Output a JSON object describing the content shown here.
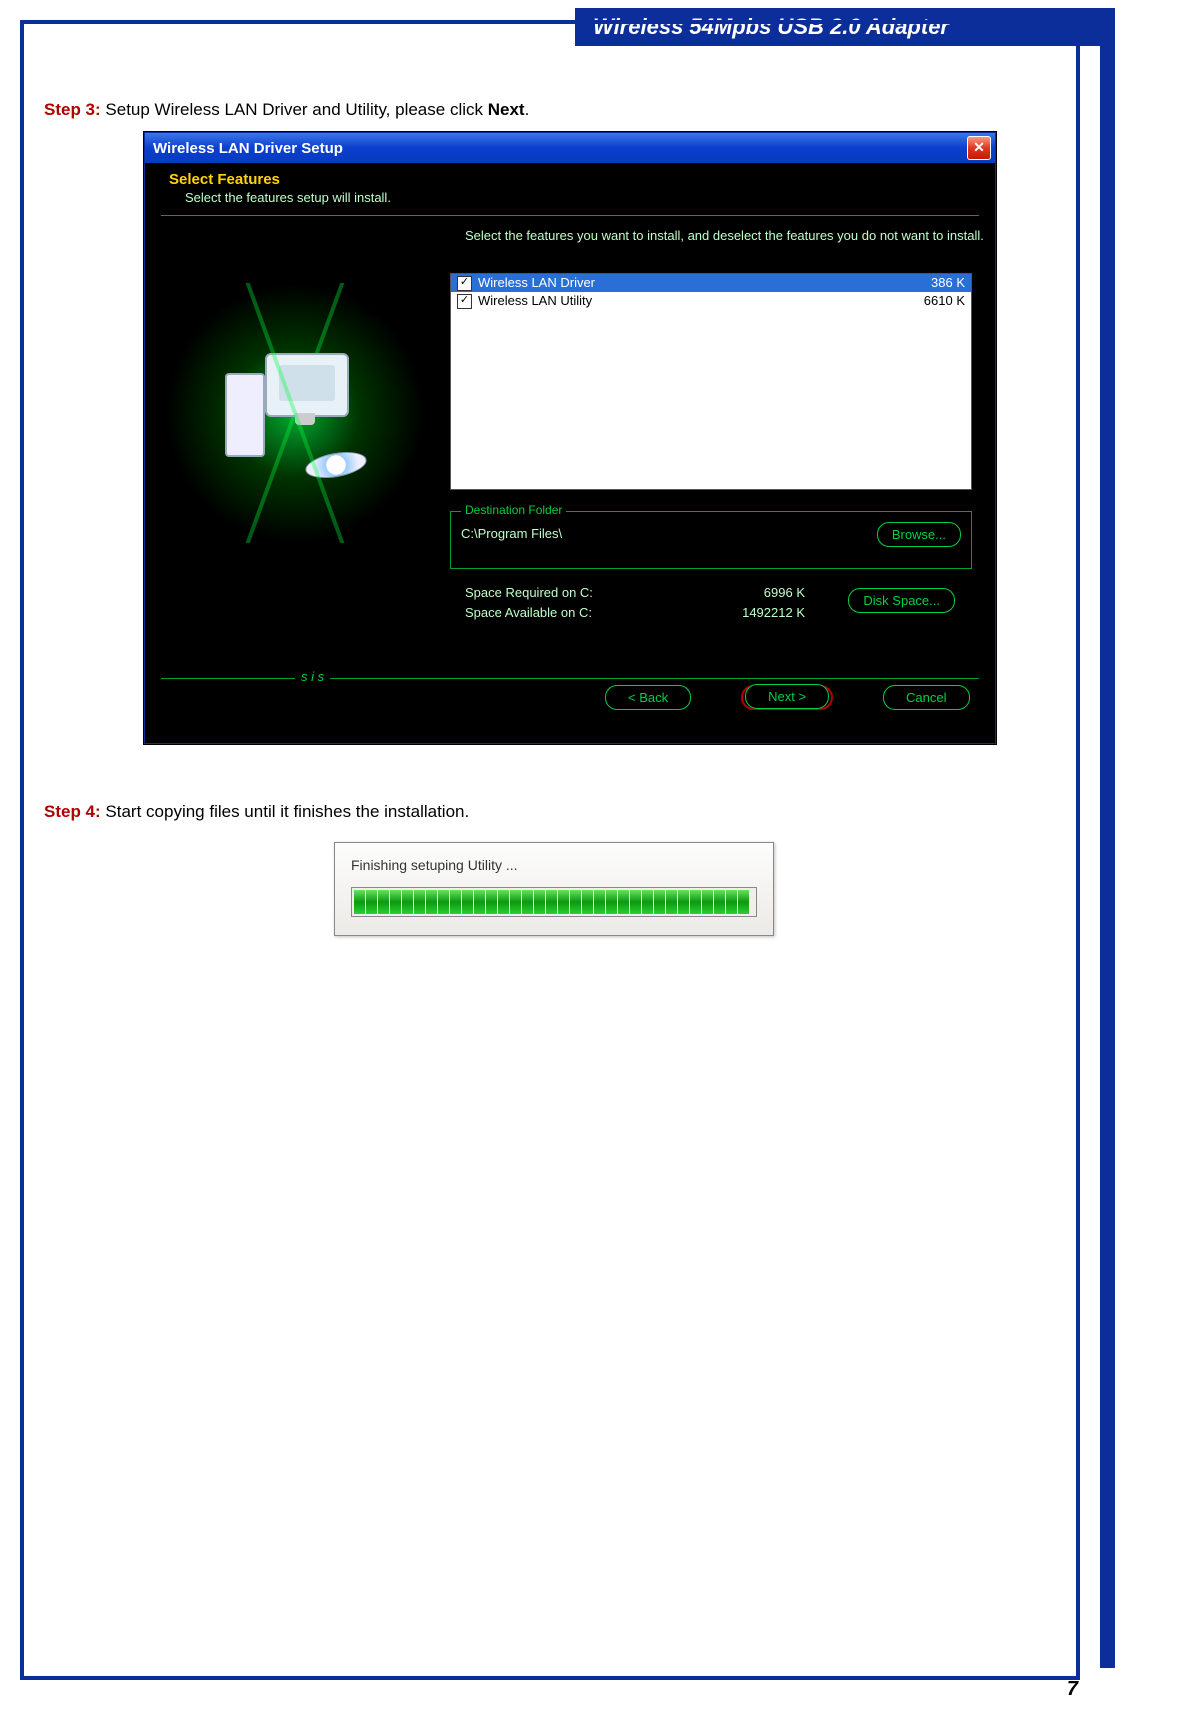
{
  "header": {
    "title": "Wireless 54Mpbs USB 2.0 Adapter"
  },
  "step3": {
    "label": "Step 3:",
    "text1": " Setup Wireless LAN Driver and Utility, please click ",
    "bold": "Next",
    "text2": "."
  },
  "step4": {
    "label": "Step 4:",
    "text": " Start copying files until it finishes the installation."
  },
  "win1": {
    "title": "Wireless LAN Driver Setup",
    "close": "✕",
    "section_title": "Select Features",
    "section_sub": "Select the features setup will install.",
    "prompt": "Select the features you want to install, and deselect the features you do not want to install.",
    "features": [
      {
        "label": "Wireless LAN Driver",
        "size": "386 K",
        "selected": true
      },
      {
        "label": "Wireless LAN Utility",
        "size": "6610 K",
        "selected": false
      }
    ],
    "dest_legend": "Destination Folder",
    "dest_path": "C:\\Program Files\\",
    "browse": "Browse...",
    "space_req_label": "Space Required on C:",
    "space_req_val": "6996 K",
    "space_avail_label": "Space Available on C:",
    "space_avail_val": "1492212 K",
    "disk_space": "Disk Space...",
    "sis": "s i s",
    "back": "< Back",
    "next": "Next >",
    "cancel": "Cancel",
    "colors": {
      "titlebar_start": "#3b76e8",
      "titlebar_end": "#073bc0",
      "close_bg": "#e03820",
      "body_bg": "#000000",
      "text_green": "#00d040",
      "text_soft": "#bfffc8",
      "text_yellow": "#ffd400",
      "border_green": "#00a030",
      "button_border": "#00d040",
      "highlight_blue": "#2a6fd6",
      "red_ring": "#b00000"
    }
  },
  "win2": {
    "label": "Finishing setuping Utility ...",
    "progress_segments": 33,
    "colors": {
      "bg": "#eceae6",
      "border": "#888888",
      "bar_light": "#6be060",
      "bar_dark": "#0a9a10"
    }
  },
  "page_number": "7",
  "doc_colors": {
    "frame": "#0b2e9a",
    "step_label": "#b00000",
    "text": "#000000"
  }
}
